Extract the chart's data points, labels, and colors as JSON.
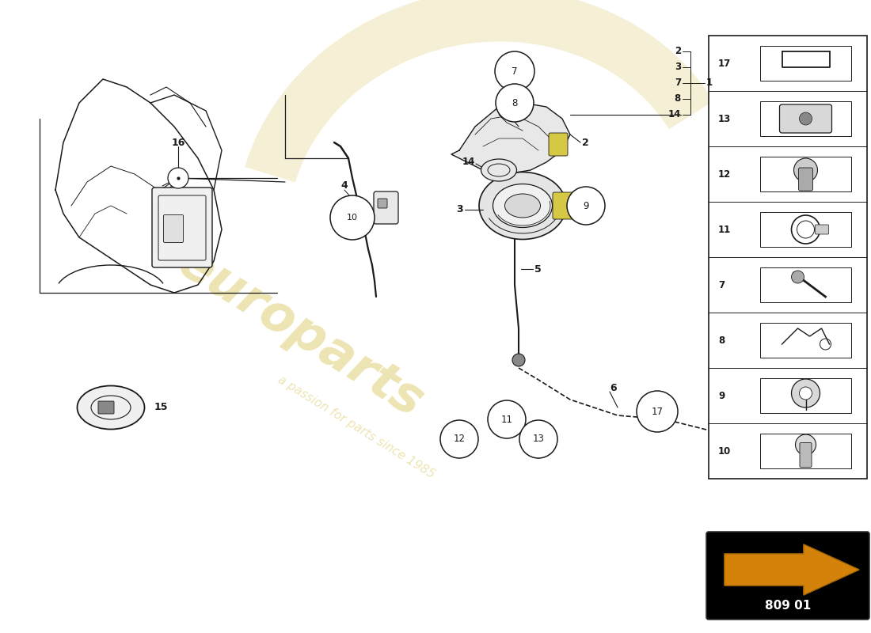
{
  "bg_color": "#ffffff",
  "lc": "#1a1a1a",
  "watermark_color": "#d4bc40",
  "watermark_alpha": 0.4,
  "part_number_text": "809 01",
  "arrow_color": "#d4820a",
  "sidebar_numbers": [
    "17",
    "13",
    "12",
    "11",
    "7",
    "8",
    "9",
    "10"
  ],
  "right_callout_numbers": [
    "2",
    "3",
    "7",
    "8",
    "14"
  ],
  "right_bracket_label": "1",
  "figsize": [
    11.0,
    8.0
  ],
  "dpi": 100
}
